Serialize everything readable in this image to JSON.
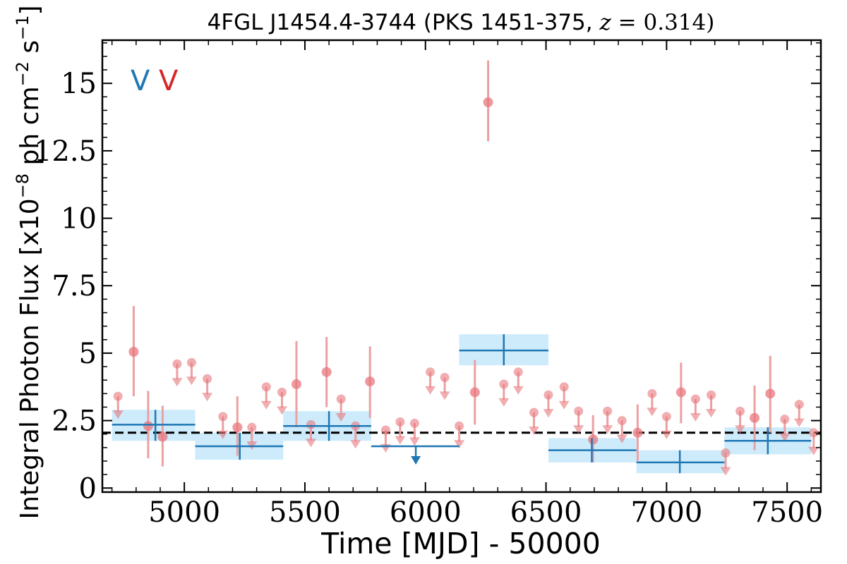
{
  "chart_data": {
    "type": "scatter",
    "title_prefix": "4FGL J1454.4-3744 (PKS 1451-375, ",
    "title_italic": "z",
    "title_suffix": " = 0.314)",
    "xlabel": "Time [MJD] - 50000",
    "ylabel_prefix": "Integral Photon Flux [x10",
    "ylabel_exp1": "−8",
    "ylabel_mid": " ph cm",
    "ylabel_exp2": "−2",
    "ylabel_mid2": " s",
    "ylabel_exp3": "−1",
    "ylabel_suffix": "]",
    "xlim": [
      4660,
      7640
    ],
    "ylim": [
      -0.15,
      16.6
    ],
    "x_ticks": [
      5000,
      5500,
      6000,
      6500,
      7000,
      7500
    ],
    "x_tick_labels": [
      "5000",
      "5500",
      "6000",
      "6500",
      "7000",
      "7500"
    ],
    "y_ticks": [
      0,
      2.5,
      5,
      7.5,
      10,
      12.5,
      15
    ],
    "y_tick_labels": [
      "0",
      "2.5",
      "5",
      "7.5",
      "10",
      "12.5",
      "15"
    ],
    "mean_flux": 2.05,
    "grid": false,
    "legend_placement": "top-left",
    "legend": [
      {
        "label": "V",
        "color": "#1f77b4"
      },
      {
        "label": "V",
        "color": "#d62728"
      }
    ],
    "colors": {
      "blue": "#1f77b4",
      "blue_band": "#cdebfb",
      "red_point": "#e8777c",
      "red_line": "#eca0a2",
      "mean_line": "#000000"
    },
    "series": [
      {
        "name": "",
        "kind": "long-bins",
        "color": "#1f77b4",
        "bins": [
          {
            "x": 4880,
            "xlo": 4700,
            "xhi": 5045,
            "y": 2.35,
            "ylo": 1.75,
            "yhi": 2.9,
            "upper_limit": false
          },
          {
            "x": 5230,
            "xlo": 5045,
            "xhi": 5410,
            "y": 1.55,
            "ylo": 1.05,
            "yhi": 2.05,
            "upper_limit": false
          },
          {
            "x": 5600,
            "xlo": 5410,
            "xhi": 5775,
            "y": 2.3,
            "ylo": 1.75,
            "yhi": 2.85,
            "upper_limit": false
          },
          {
            "x": 5960,
            "xlo": 5775,
            "xhi": 6140,
            "y": 1.55,
            "ylo": 1.55,
            "yhi": 1.55,
            "upper_limit": true
          },
          {
            "x": 6325,
            "xlo": 6140,
            "xhi": 6510,
            "y": 5.1,
            "ylo": 4.55,
            "yhi": 5.7,
            "upper_limit": false
          },
          {
            "x": 6690,
            "xlo": 6510,
            "xhi": 6875,
            "y": 1.4,
            "ylo": 0.95,
            "yhi": 1.85,
            "upper_limit": false
          },
          {
            "x": 7055,
            "xlo": 6875,
            "xhi": 7240,
            "y": 0.95,
            "ylo": 0.55,
            "yhi": 1.4,
            "upper_limit": false
          },
          {
            "x": 7420,
            "xlo": 7240,
            "xhi": 7600,
            "y": 1.75,
            "ylo": 1.25,
            "yhi": 2.25,
            "upper_limit": false
          }
        ]
      },
      {
        "name": "",
        "kind": "short-bins",
        "color": "#e8777c",
        "points": [
          {
            "x": 4725,
            "y": 3.4,
            "upper_limit": true
          },
          {
            "x": 4790,
            "y": 5.05,
            "ylo": 3.4,
            "yhi": 6.75,
            "upper_limit": false
          },
          {
            "x": 4850,
            "y": 2.3,
            "ylo": 1.1,
            "yhi": 3.6,
            "upper_limit": false
          },
          {
            "x": 4910,
            "y": 1.9,
            "ylo": 0.8,
            "yhi": 3.05,
            "upper_limit": false
          },
          {
            "x": 4970,
            "y": 4.6,
            "upper_limit": true
          },
          {
            "x": 5030,
            "y": 4.65,
            "upper_limit": true
          },
          {
            "x": 5095,
            "y": 4.05,
            "upper_limit": true
          },
          {
            "x": 5160,
            "y": 2.65,
            "upper_limit": true
          },
          {
            "x": 5220,
            "y": 2.25,
            "ylo": 1.2,
            "yhi": 3.4,
            "upper_limit": false
          },
          {
            "x": 5280,
            "y": 2.25,
            "upper_limit": true
          },
          {
            "x": 5340,
            "y": 3.75,
            "upper_limit": true
          },
          {
            "x": 5405,
            "y": 3.55,
            "upper_limit": true
          },
          {
            "x": 5465,
            "y": 3.85,
            "ylo": 2.25,
            "yhi": 5.45,
            "upper_limit": false
          },
          {
            "x": 5525,
            "y": 2.35,
            "upper_limit": true
          },
          {
            "x": 5590,
            "y": 4.3,
            "ylo": 3.0,
            "yhi": 5.6,
            "upper_limit": false
          },
          {
            "x": 5650,
            "y": 3.3,
            "upper_limit": true
          },
          {
            "x": 5710,
            "y": 2.3,
            "upper_limit": true
          },
          {
            "x": 5770,
            "y": 3.95,
            "ylo": 2.6,
            "yhi": 5.25,
            "upper_limit": false
          },
          {
            "x": 5835,
            "y": 2.15,
            "upper_limit": true
          },
          {
            "x": 5895,
            "y": 2.45,
            "upper_limit": true
          },
          {
            "x": 5955,
            "y": 2.4,
            "upper_limit": true
          },
          {
            "x": 6020,
            "y": 4.3,
            "upper_limit": true
          },
          {
            "x": 6080,
            "y": 4.1,
            "upper_limit": true
          },
          {
            "x": 6140,
            "y": 2.3,
            "upper_limit": true
          },
          {
            "x": 6205,
            "y": 3.55,
            "ylo": 2.35,
            "yhi": 4.75,
            "upper_limit": false
          },
          {
            "x": 6260,
            "y": 14.3,
            "ylo": 12.85,
            "yhi": 15.85,
            "upper_limit": false
          },
          {
            "x": 6325,
            "y": 3.85,
            "upper_limit": true
          },
          {
            "x": 6385,
            "y": 4.3,
            "upper_limit": true
          },
          {
            "x": 6450,
            "y": 2.8,
            "upper_limit": true
          },
          {
            "x": 6510,
            "y": 3.45,
            "upper_limit": true
          },
          {
            "x": 6575,
            "y": 3.75,
            "upper_limit": true
          },
          {
            "x": 6635,
            "y": 2.85,
            "upper_limit": true
          },
          {
            "x": 6695,
            "y": 1.8,
            "ylo": 0.95,
            "yhi": 2.7,
            "upper_limit": false
          },
          {
            "x": 6755,
            "y": 2.85,
            "upper_limit": true
          },
          {
            "x": 6815,
            "y": 2.5,
            "upper_limit": true
          },
          {
            "x": 6880,
            "y": 2.05,
            "ylo": 1.0,
            "yhi": 3.1,
            "upper_limit": false
          },
          {
            "x": 6940,
            "y": 3.5,
            "upper_limit": true
          },
          {
            "x": 7000,
            "y": 2.65,
            "upper_limit": true
          },
          {
            "x": 7060,
            "y": 3.55,
            "ylo": 2.4,
            "yhi": 4.65,
            "upper_limit": false
          },
          {
            "x": 7120,
            "y": 3.3,
            "upper_limit": true
          },
          {
            "x": 7185,
            "y": 3.45,
            "upper_limit": true
          },
          {
            "x": 7245,
            "y": 1.3,
            "upper_limit": true
          },
          {
            "x": 7305,
            "y": 2.85,
            "upper_limit": true
          },
          {
            "x": 7365,
            "y": 2.6,
            "ylo": 1.4,
            "yhi": 3.8,
            "upper_limit": false
          },
          {
            "x": 7430,
            "y": 3.5,
            "ylo": 2.05,
            "yhi": 4.9,
            "upper_limit": false
          },
          {
            "x": 7490,
            "y": 2.55,
            "upper_limit": true
          },
          {
            "x": 7550,
            "y": 3.1,
            "upper_limit": true
          },
          {
            "x": 7610,
            "y": 2.05,
            "upper_limit": true
          }
        ]
      }
    ]
  }
}
